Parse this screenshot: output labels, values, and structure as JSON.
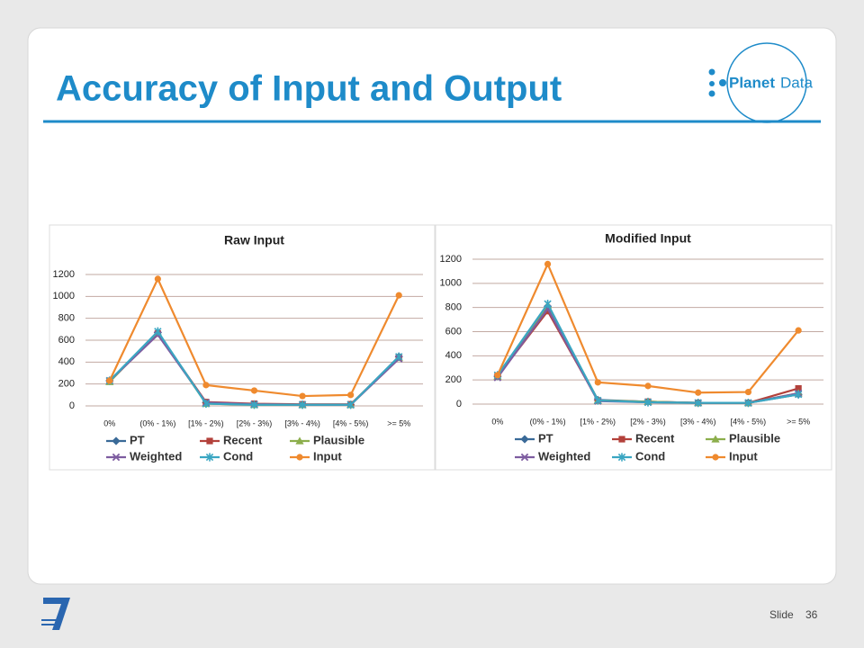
{
  "title": "Accuracy of Input and Output",
  "logo_text": [
    "Planet",
    "Data"
  ],
  "slide_label": "Slide",
  "slide_number": "36",
  "chart_data": [
    {
      "type": "line",
      "title": "Raw Input",
      "categories": [
        "0%",
        "(0% - 1%)",
        "[1% - 2%)",
        "[2% - 3%)",
        "[3% - 4%)",
        "[4% - 5%)",
        ">= 5%"
      ],
      "ylim": [
        0,
        1200
      ],
      "yticks": [
        0,
        200,
        400,
        600,
        800,
        1000,
        1200
      ],
      "grid": true,
      "legend": "bottom",
      "series": [
        {
          "name": "PT",
          "color": "#3a6a98",
          "marker": "diamond",
          "values": [
            230,
            670,
            30,
            15,
            10,
            10,
            450
          ]
        },
        {
          "name": "Recent",
          "color": "#b3413b",
          "marker": "square",
          "values": [
            230,
            660,
            35,
            20,
            15,
            15,
            440
          ]
        },
        {
          "name": "Plausible",
          "color": "#8cae4c",
          "marker": "triangle",
          "values": [
            220,
            670,
            20,
            10,
            10,
            10,
            440
          ]
        },
        {
          "name": "Weighted",
          "color": "#7d5ca0",
          "marker": "x",
          "values": [
            230,
            650,
            30,
            15,
            10,
            10,
            430
          ]
        },
        {
          "name": "Cond",
          "color": "#3aa6c2",
          "marker": "star",
          "values": [
            230,
            680,
            20,
            10,
            10,
            10,
            450
          ]
        },
        {
          "name": "Input",
          "color": "#ef8a2e",
          "marker": "circle",
          "values": [
            230,
            1160,
            190,
            140,
            90,
            100,
            1010
          ]
        }
      ]
    },
    {
      "type": "line",
      "title": "Modified Input",
      "categories": [
        "0%",
        "(0% - 1%)",
        "[1% - 2%)",
        "[2% - 3%)",
        "[3% - 4%)",
        "[4% - 5%)",
        ">= 5%"
      ],
      "ylim": [
        0,
        1200
      ],
      "yticks": [
        0,
        200,
        400,
        600,
        800,
        1000,
        1200
      ],
      "grid": true,
      "legend": "bottom",
      "series": [
        {
          "name": "PT",
          "color": "#3a6a98",
          "marker": "diamond",
          "values": [
            230,
            810,
            35,
            20,
            10,
            10,
            80
          ]
        },
        {
          "name": "Recent",
          "color": "#b3413b",
          "marker": "square",
          "values": [
            230,
            770,
            30,
            20,
            10,
            10,
            130
          ]
        },
        {
          "name": "Plausible",
          "color": "#8cae4c",
          "marker": "triangle",
          "values": [
            230,
            820,
            30,
            20,
            10,
            10,
            90
          ]
        },
        {
          "name": "Weighted",
          "color": "#7d5ca0",
          "marker": "x",
          "values": [
            220,
            790,
            25,
            15,
            10,
            10,
            90
          ]
        },
        {
          "name": "Cond",
          "color": "#3aa6c2",
          "marker": "star",
          "values": [
            240,
            830,
            30,
            15,
            10,
            10,
            80
          ]
        },
        {
          "name": "Input",
          "color": "#ef8a2e",
          "marker": "circle",
          "values": [
            240,
            1160,
            180,
            150,
            95,
            100,
            610
          ]
        }
      ]
    }
  ]
}
